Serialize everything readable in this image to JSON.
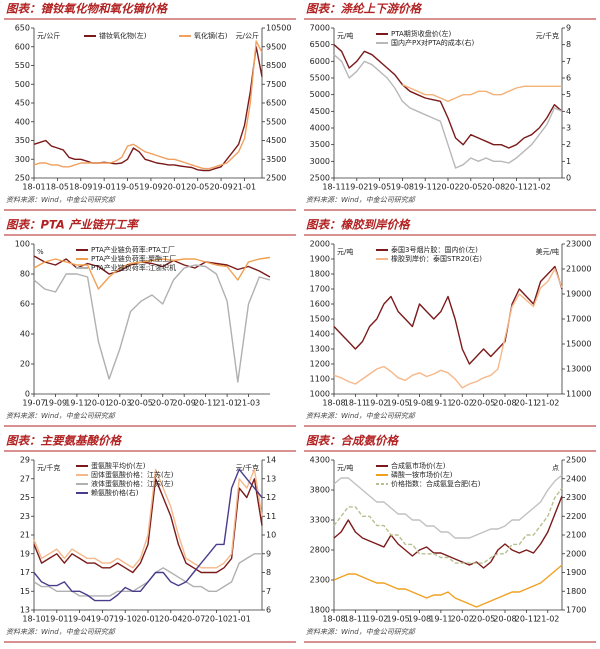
{
  "chart_data": [
    {
      "type": "line",
      "title": "图表：镨钕氧化物和氧化镝价格",
      "source": "资料来源：Wind，中金公司研究部",
      "categories": [
        "18-01",
        null,
        null,
        null,
        "18-05",
        null,
        null,
        null,
        "18-09",
        null,
        null,
        null,
        "19-01",
        null,
        null,
        null,
        "19-05",
        null,
        null,
        null,
        "19-09",
        null,
        null,
        null,
        "20-01",
        null,
        null,
        null,
        "20-05",
        null,
        null,
        null,
        "20-09",
        null,
        null,
        null,
        "21-01",
        null,
        null,
        null
      ],
      "y_unit": "元/公斤",
      "y2_unit": "元/公斤",
      "legend_layout": "row",
      "ylim": [
        250,
        650
      ],
      "yticks": [
        250,
        300,
        350,
        400,
        450,
        500,
        550,
        600,
        650
      ],
      "y2lim": [
        2500,
        10500
      ],
      "y2ticks": [
        2500,
        3500,
        4500,
        5500,
        6500,
        7500,
        8500,
        9500,
        10500
      ],
      "series": [
        {
          "name": "镨钕氧化物(左)",
          "color": "#7b1a1a",
          "values": [
            340,
            345,
            350,
            335,
            330,
            325,
            305,
            300,
            300,
            295,
            290,
            290,
            292,
            290,
            288,
            290,
            300,
            330,
            320,
            300,
            295,
            290,
            288,
            285,
            285,
            282,
            280,
            278,
            272,
            270,
            270,
            275,
            280,
            300,
            320,
            340,
            390,
            480,
            600,
            520
          ]
        },
        {
          "name": "氧化镝(右)",
          "color": "#f0a060",
          "axis": "y2",
          "values": [
            3200,
            3300,
            3300,
            3200,
            3200,
            3100,
            3100,
            3200,
            3300,
            3300,
            3300,
            3300,
            3300,
            3300,
            3400,
            3600,
            4200,
            4300,
            4100,
            3900,
            3800,
            3700,
            3600,
            3500,
            3500,
            3400,
            3300,
            3200,
            3100,
            3000,
            3000,
            3100,
            3200,
            3300,
            3600,
            3900,
            4600,
            6500,
            9800,
            9200
          ]
        }
      ]
    },
    {
      "type": "line",
      "title": "图表：涤纶上下游价格",
      "source": "资料来源：Wind，中金公司研究部",
      "categories": [
        "18-11",
        null,
        null,
        "19-02",
        null,
        null,
        "19-05",
        null,
        null,
        "19-08",
        null,
        null,
        "19-11",
        null,
        null,
        "20-02",
        null,
        null,
        "20-05",
        null,
        null,
        "20-08",
        null,
        null,
        "20-11",
        null,
        null,
        "21-02",
        null,
        null,
        null
      ],
      "y_unit": "元/吨",
      "y2_unit": "元/千克",
      "ylim": [
        2500,
        7000
      ],
      "yticks": [
        2500,
        3000,
        3500,
        4000,
        4500,
        5000,
        5500,
        6000,
        6500,
        7000
      ],
      "y2lim": [
        0,
        9
      ],
      "y2ticks": [
        0,
        1,
        2,
        3,
        4,
        5,
        6,
        7,
        8,
        9
      ],
      "series": [
        {
          "name": "PTA期货收盘价(左)",
          "color": "#7b1a1a",
          "values": [
            6500,
            6300,
            5800,
            6000,
            6300,
            6200,
            6000,
            5800,
            5600,
            5300,
            5100,
            5000,
            4900,
            4850,
            4800,
            4300,
            3700,
            3500,
            3800,
            3700,
            3600,
            3500,
            3500,
            3400,
            3500,
            3700,
            3800,
            4000,
            4300,
            4700,
            4500
          ]
        },
        {
          "name": "国内产PX对PTA的成本(右)",
          "color": "#b8b8b8",
          "axis": "y2",
          "values": [
            7.4,
            7.0,
            6.0,
            6.4,
            7.0,
            6.8,
            6.4,
            6.0,
            5.4,
            4.6,
            4.2,
            4.0,
            3.8,
            3.6,
            3.4,
            2.0,
            0.6,
            0.8,
            1.2,
            1.0,
            1.2,
            1.0,
            1.0,
            0.9,
            1.2,
            1.6,
            2.0,
            2.6,
            3.2,
            4.2,
            4.0
          ]
        },
        {
          "color": "#f2b27a",
          "axis": "y2",
          "values": [
            null,
            null,
            null,
            null,
            null,
            null,
            null,
            null,
            null,
            5.6,
            5.4,
            5.2,
            5.0,
            5.0,
            4.8,
            4.6,
            4.8,
            5.0,
            5.0,
            5.2,
            5.2,
            5.0,
            5.0,
            5.2,
            5.4,
            5.5,
            5.5,
            5.5,
            5.5,
            5.5,
            5.5
          ]
        }
      ]
    },
    {
      "type": "line",
      "title": "图表：PTA 产业链开工率",
      "source": "资料来源：Wind，中金公司研究部",
      "categories": [
        "19-07",
        null,
        "19-09",
        null,
        "19-11",
        null,
        "20-01",
        null,
        "20-03",
        null,
        "20-05",
        null,
        "20-07",
        null,
        "20-09",
        null,
        "20-11",
        null,
        "21-01",
        null,
        "21-03",
        null,
        null
      ],
      "y_unit": "%",
      "ylim": [
        0,
        100
      ],
      "yticks": [
        0,
        20,
        40,
        60,
        80,
        100
      ],
      "series": [
        {
          "name": "PTA产业链负荷率:PTA工厂",
          "color": "#7b1a1a",
          "values": [
            92,
            88,
            86,
            90,
            84,
            87,
            85,
            80,
            82,
            86,
            88,
            87,
            85,
            89,
            86,
            84,
            88,
            87,
            86,
            83,
            85,
            82,
            78
          ]
        },
        {
          "name": "PTA产业链负荷率:聚酯工厂",
          "color": "#f0a050",
          "values": [
            84,
            88,
            90,
            88,
            86,
            86,
            70,
            78,
            84,
            87,
            88,
            89,
            90,
            89,
            90,
            90,
            88,
            86,
            85,
            76,
            88,
            90,
            91
          ]
        },
        {
          "name": "PTA产业链负荷率:江浙织机",
          "color": "#b0b0b0",
          "values": [
            76,
            70,
            68,
            80,
            80,
            78,
            35,
            10,
            30,
            55,
            62,
            66,
            60,
            76,
            84,
            86,
            85,
            80,
            62,
            8,
            60,
            78,
            76
          ]
        }
      ]
    },
    {
      "type": "line",
      "title": "图表：橡胶到岸价格",
      "source": "资料来源：Wind，中金公司研究部",
      "categories": [
        "18-08",
        null,
        null,
        "18-11",
        null,
        null,
        "19-02",
        null,
        null,
        "19-05",
        null,
        null,
        "19-08",
        null,
        null,
        "19-11",
        null,
        null,
        "20-02",
        null,
        null,
        "20-05",
        null,
        null,
        "20-08",
        null,
        null,
        "20-11",
        null,
        null,
        "21-02",
        null,
        null
      ],
      "y_unit": "元/吨",
      "y2_unit": "美元/吨",
      "ylim": [
        1000,
        2000
      ],
      "yticks": [
        1000,
        1100,
        1200,
        1300,
        1400,
        1500,
        1600,
        1700,
        1800,
        1900,
        2000
      ],
      "y2lim": [
        11000,
        23000
      ],
      "y2ticks": [
        11000,
        13000,
        15000,
        17000,
        19000,
        21000,
        23000
      ],
      "series": [
        {
          "name": "泰国3号烟片胶：国内价(左)",
          "color": "#7b1a1a",
          "values": [
            1450,
            1400,
            1350,
            1300,
            1350,
            1450,
            1500,
            1600,
            1650,
            1550,
            1500,
            1450,
            1600,
            1550,
            1500,
            1550,
            1650,
            1500,
            1300,
            1200,
            1250,
            1300,
            1250,
            1300,
            1350,
            1600,
            1700,
            1650,
            1600,
            1750,
            1800,
            1850,
            1700
          ]
        },
        {
          "name": "橡胶到岸价：泰国STR20(右)",
          "color": "#f5b88a",
          "axis": "y2",
          "values": [
            12500,
            12300,
            12000,
            11800,
            12200,
            12600,
            13000,
            13200,
            12800,
            12300,
            12100,
            12500,
            12700,
            12400,
            12600,
            12900,
            12700,
            12200,
            11500,
            11800,
            12000,
            12300,
            12500,
            13000,
            15500,
            18000,
            19000,
            18500,
            18000,
            19500,
            20000,
            21000,
            19500
          ]
        }
      ]
    },
    {
      "type": "line",
      "title": "图表：主要氨基酸价格",
      "source": "资料来源：Wind，中金公司研究部",
      "categories": [
        "18-10",
        null,
        null,
        "19-01",
        null,
        null,
        "19-04",
        null,
        null,
        "19-07",
        null,
        null,
        "19-10",
        null,
        null,
        "20-01",
        null,
        null,
        "20-04",
        null,
        null,
        "20-07",
        null,
        null,
        "20-10",
        null,
        null,
        "21-01",
        null,
        null,
        null
      ],
      "y_unit": "元/千克",
      "y2_unit": "元/千克",
      "ylim": [
        13,
        29
      ],
      "yticks": [
        13,
        15,
        17,
        19,
        21,
        23,
        25,
        27,
        29
      ],
      "y2lim": [
        6,
        14
      ],
      "y2ticks": [
        6,
        7,
        8,
        9,
        10,
        11,
        12,
        13,
        14
      ],
      "series": [
        {
          "name": "蛋氨酸平均价(左)",
          "color": "#7b1a1a",
          "values": [
            20,
            18,
            18.5,
            19,
            18,
            19,
            18.5,
            18,
            18,
            17.5,
            17.5,
            18,
            17.5,
            17,
            18,
            20,
            27,
            25,
            23,
            20,
            18,
            17.5,
            17,
            17,
            17,
            17.5,
            18.5,
            26,
            25,
            27,
            22
          ]
        },
        {
          "name": "固体蛋氨酸价格：江苏(左)",
          "color": "#f5b88a",
          "values": [
            20.5,
            18.5,
            19,
            19.5,
            18.5,
            19.5,
            19,
            18.5,
            18.5,
            18,
            18,
            18.5,
            18,
            17.5,
            18.5,
            21,
            28,
            26,
            24,
            21,
            18.5,
            18,
            17.5,
            17.5,
            17.5,
            18,
            19,
            27,
            26,
            28,
            23
          ]
        },
        {
          "name": "液体蛋氨酸价格：江苏(左)",
          "color": "#b0b0b0",
          "values": [
            16,
            15.5,
            15.5,
            15,
            15,
            15,
            14.5,
            14.5,
            14.5,
            14.5,
            14.5,
            15,
            15,
            15,
            15.5,
            16,
            17,
            17.5,
            17,
            16.5,
            16,
            15.5,
            15.5,
            15,
            15,
            15.5,
            16,
            18,
            18.5,
            19,
            19
          ]
        },
        {
          "name": "赖氨酸价格(右)",
          "color": "#4b3b8c",
          "axis": "y2",
          "values": [
            8,
            7.5,
            7.3,
            7.3,
            7.5,
            7,
            7,
            6.8,
            6.5,
            6.5,
            6.5,
            6.8,
            7.2,
            7,
            7,
            7.5,
            8,
            8,
            7.5,
            7.3,
            7.5,
            8,
            8.5,
            9,
            9.5,
            9.5,
            12.5,
            13.5,
            13,
            12.5,
            12
          ]
        }
      ]
    },
    {
      "type": "line",
      "title": "图表：合成氨价格",
      "source": "资料来源：Wind，中金公司研究部",
      "categories": [
        "18-08",
        null,
        null,
        "18-11",
        null,
        null,
        "19-02",
        null,
        null,
        "19-05",
        null,
        null,
        "19-08",
        null,
        null,
        "19-11",
        null,
        null,
        "20-02",
        null,
        null,
        "20-05",
        null,
        null,
        "20-08",
        null,
        null,
        "20-11",
        null,
        null,
        "21-02",
        null,
        null
      ],
      "y_unit": "元/吨",
      "y2_unit": "点",
      "ylim": [
        1800,
        4300
      ],
      "yticks": [
        1800,
        2300,
        2800,
        3300,
        3800,
        4300
      ],
      "y2lim": [
        1700,
        2500
      ],
      "y2ticks": [
        1700,
        1800,
        1900,
        2000,
        2100,
        2200,
        2300,
        2400,
        2500
      ],
      "series": [
        {
          "name": "合成氨市场价(左)",
          "color": "#7b1a1a",
          "values": [
            3000,
            3100,
            3300,
            3100,
            3000,
            2950,
            2900,
            2850,
            3050,
            2900,
            2800,
            2700,
            2800,
            2850,
            2750,
            2750,
            2700,
            2650,
            2600,
            2550,
            2600,
            2500,
            2600,
            2800,
            2900,
            2800,
            2750,
            2800,
            2750,
            2900,
            3100,
            3400,
            3700
          ]
        },
        {
          "name": "磷酸一铵市场价(左)",
          "color": "#f0a020",
          "values": [
            2300,
            2350,
            2400,
            2400,
            2350,
            2300,
            2250,
            2250,
            2200,
            2150,
            2150,
            2100,
            2050,
            2000,
            2050,
            2050,
            2100,
            2000,
            1950,
            1900,
            1850,
            1900,
            1950,
            2000,
            2050,
            2100,
            2100,
            2150,
            2200,
            2250,
            2350,
            2450,
            2550
          ]
        },
        {
          "name": "价格指数：合成氨复合肥(右)",
          "color": "#b8c090",
          "axis": "y2",
          "dash": true,
          "values": [
            2150,
            2200,
            2250,
            2250,
            2200,
            2200,
            2150,
            2150,
            2100,
            2100,
            2050,
            2050,
            2000,
            2000,
            2000,
            1980,
            1980,
            1950,
            1950,
            1950,
            1950,
            1950,
            1980,
            2000,
            2000,
            2050,
            2050,
            2100,
            2100,
            2150,
            2200,
            2300,
            2350
          ]
        },
        {
          "color": "#c0c0c0",
          "values": [
            3900,
            4000,
            4000,
            3900,
            3800,
            3700,
            3600,
            3600,
            3500,
            3400,
            3400,
            3300,
            3300,
            3200,
            3200,
            3100,
            3100,
            3000,
            3000,
            3000,
            3050,
            3100,
            3150,
            3150,
            3200,
            3300,
            3300,
            3400,
            3500,
            3600,
            3800,
            3950,
            4050
          ]
        }
      ]
    }
  ]
}
